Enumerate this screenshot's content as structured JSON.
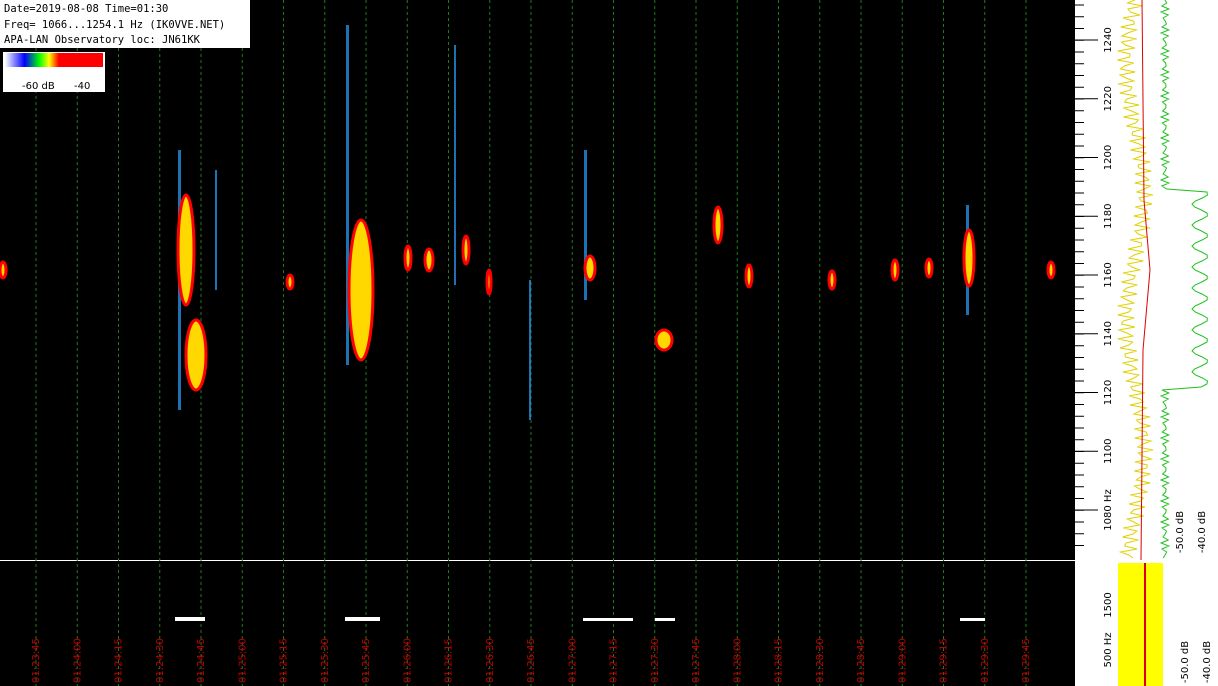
{
  "header": {
    "lines": [
      "Date=2019-08-08 Time=01:30",
      "Freq= 1066...1254.1 Hz (IK0VVE.NET)",
      "APA-LAN Observatory loc: JN61KK"
    ]
  },
  "colorbar": {
    "labels": [
      "-60 dB",
      "-40"
    ]
  },
  "freq_axis": {
    "labels": [
      "1240",
      "1220",
      "1200",
      "1180",
      "1160",
      "1140",
      "1120",
      "1100",
      "1080 Hz"
    ]
  },
  "level_axis": {
    "labels": [
      "-50.0 dB",
      "-40.0 dB"
    ]
  },
  "time_axis": {
    "labels": [
      "01:23:45",
      "01:24:00",
      "01:24:15",
      "01:24:30",
      "01:24:45",
      "01:25:00",
      "01:25:15",
      "01:25:30",
      "01:25:45",
      "01:26:00",
      "01:26:15",
      "01:26:30",
      "01:26:45",
      "01:27:00",
      "01:27:15",
      "01:27:30",
      "01:27:45",
      "01:28:00",
      "01:28:15",
      "01:28:30",
      "01:28:45",
      "01:29:00",
      "01:29:15",
      "01:29:30",
      "01:29:45"
    ]
  },
  "lower_panel": {
    "freq_labels": [
      "1500",
      "500 Hz"
    ],
    "level_labels": [
      "-50.0 dB",
      "-40.0 dB"
    ]
  }
}
